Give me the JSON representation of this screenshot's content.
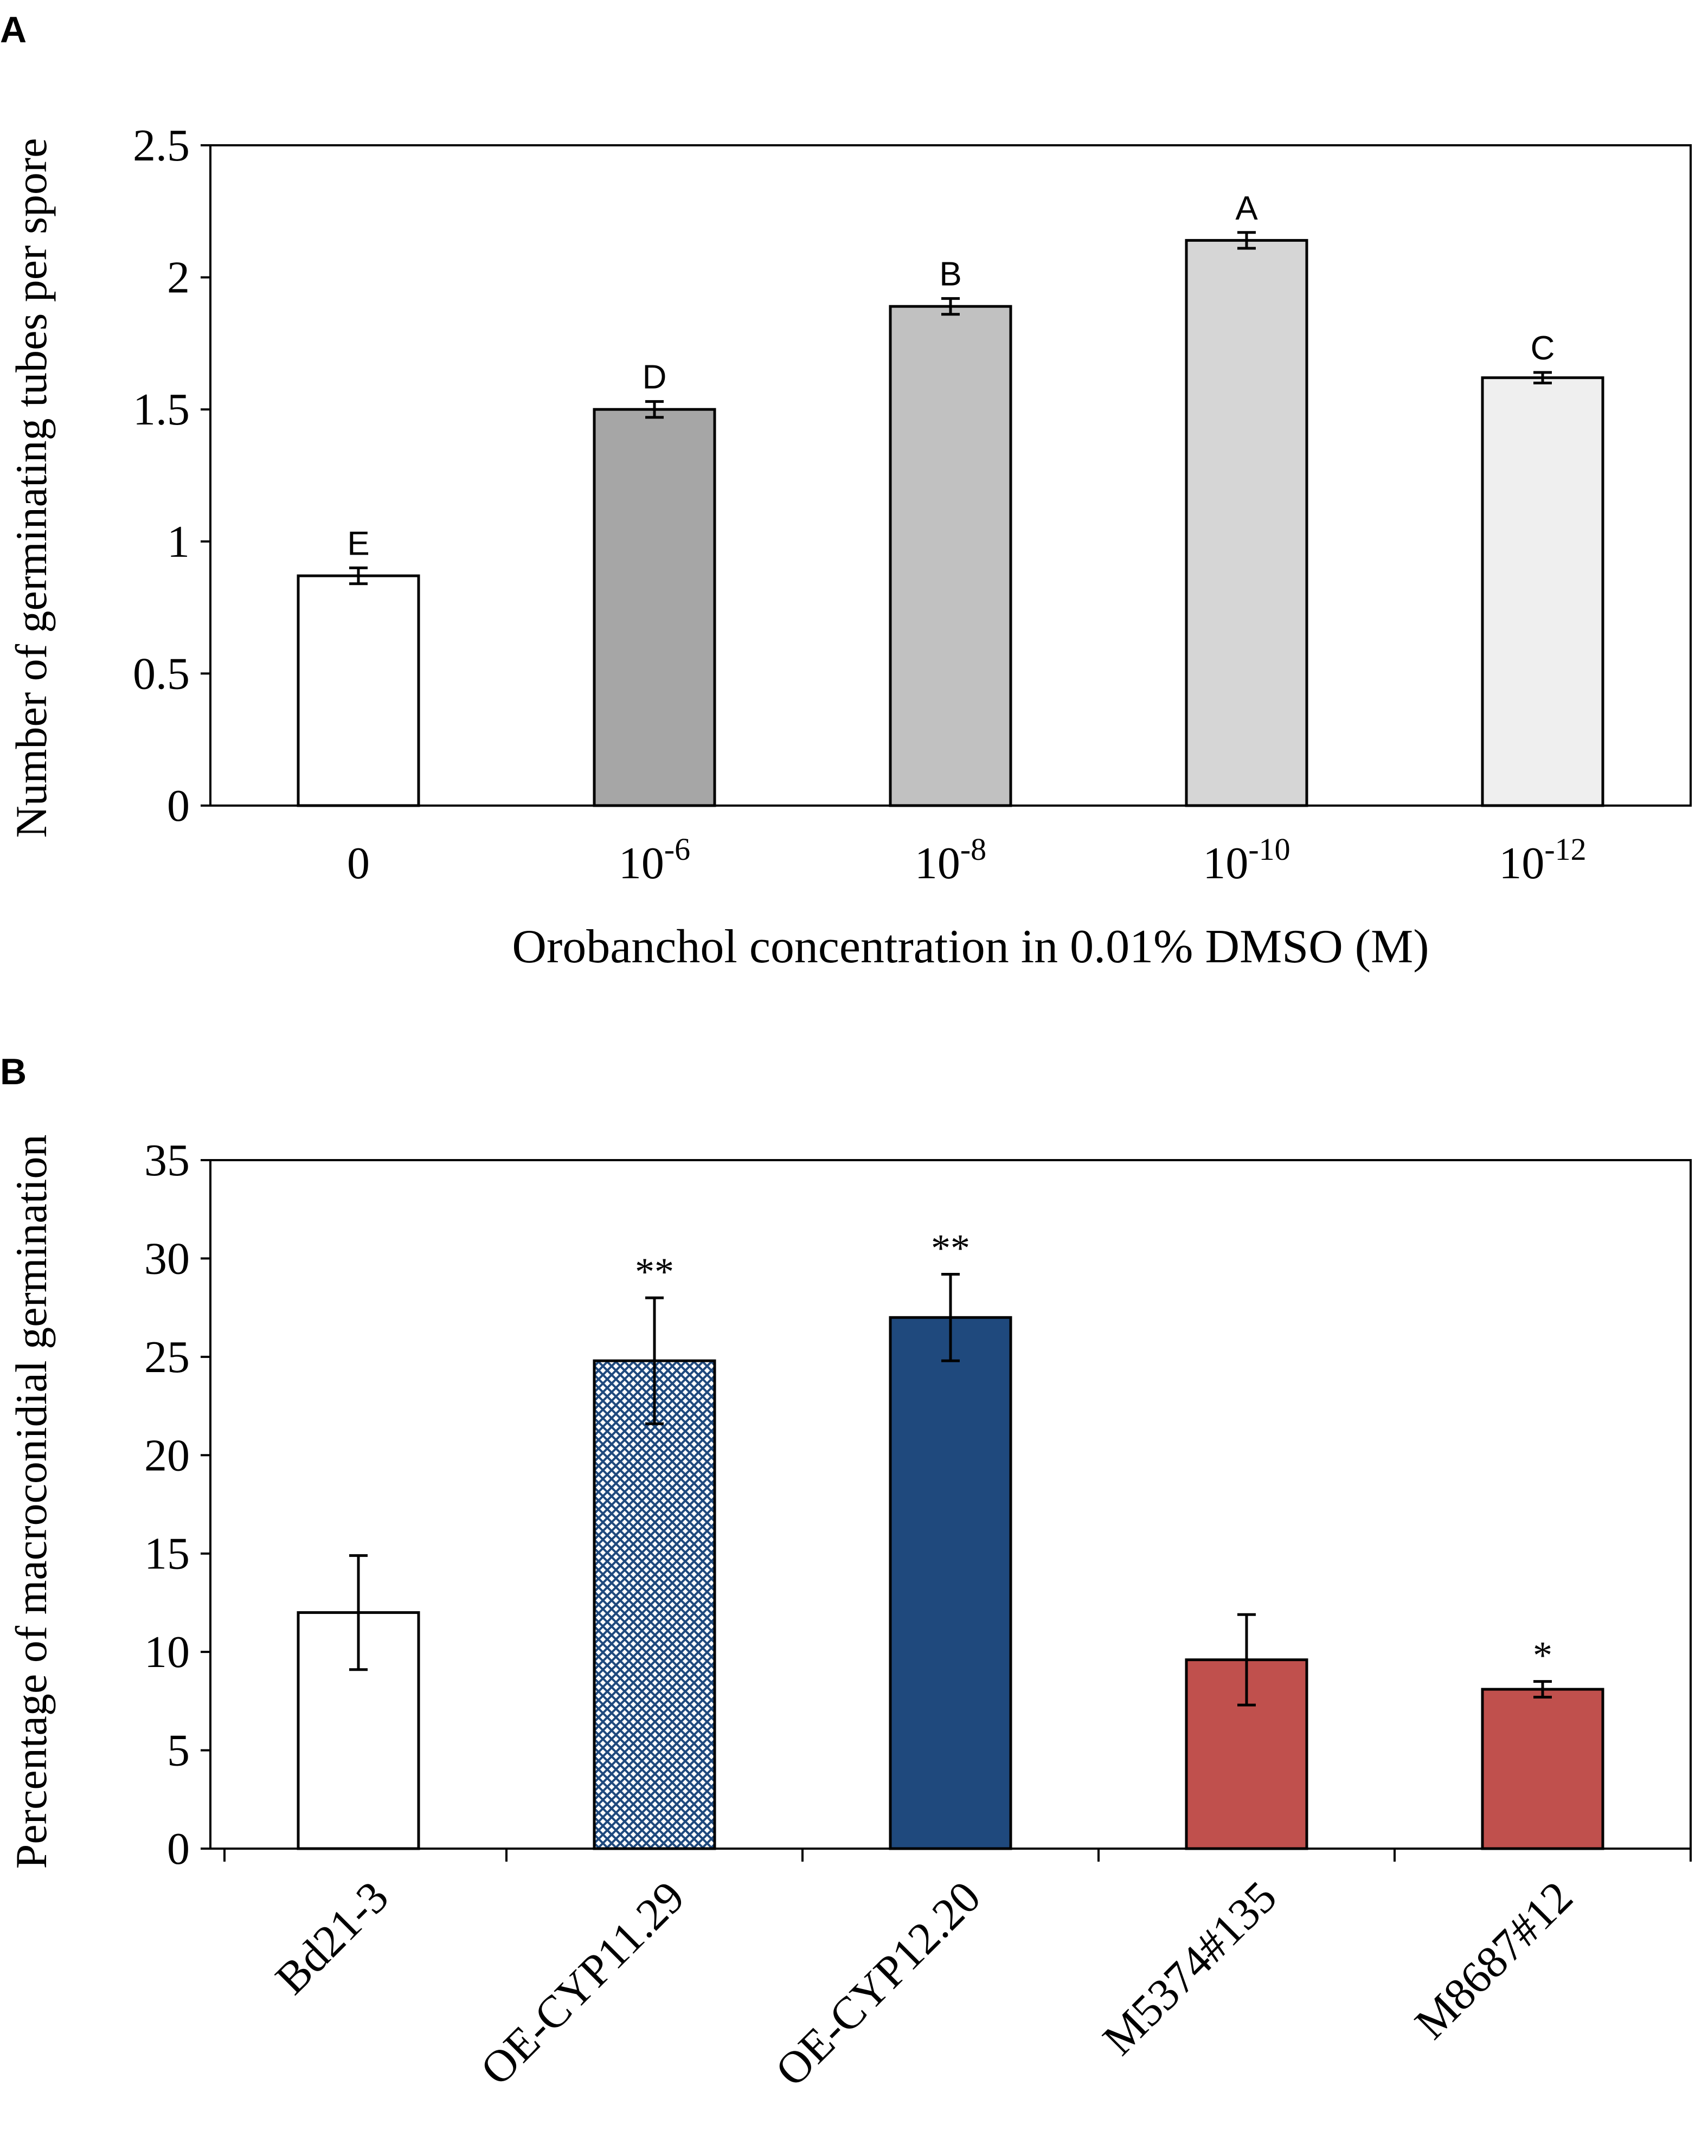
{
  "chart_data": [
    {
      "panel": "A",
      "type": "bar",
      "title": "",
      "xlabel": "Orobanchol concentration in 0.01% DMSO (M)",
      "ylabel": "Number of germinating tubes per spore",
      "ylim": [
        0,
        2.5
      ],
      "yticks": [
        "0",
        "0.5",
        "1",
        "1.5",
        "2",
        "2.5"
      ],
      "ytick_values": [
        0,
        0.5,
        1,
        1.5,
        2,
        2.5
      ],
      "categories": [
        {
          "base": "0",
          "exp": ""
        },
        {
          "base": "10",
          "exp": "-6"
        },
        {
          "base": "10",
          "exp": "-8"
        },
        {
          "base": "10",
          "exp": "-10"
        },
        {
          "base": "10",
          "exp": "-12"
        }
      ],
      "values": [
        0.87,
        1.5,
        1.89,
        2.14,
        1.62
      ],
      "errors": [
        0.03,
        0.03,
        0.03,
        0.03,
        0.02
      ],
      "annotations": [
        "E",
        "D",
        "B",
        "A",
        "C"
      ],
      "colors": [
        "#ffffff",
        "#a6a6a6",
        "#c1c1c1",
        "#d6d6d6",
        "#efefef"
      ]
    },
    {
      "panel": "B",
      "type": "bar",
      "title": "",
      "xlabel": "",
      "ylabel": "Percentage of macroconidial germination",
      "ylim": [
        0,
        35
      ],
      "yticks": [
        "0",
        "5",
        "10",
        "15",
        "20",
        "25",
        "30",
        "35"
      ],
      "ytick_values": [
        0,
        5,
        10,
        15,
        20,
        25,
        30,
        35
      ],
      "categories": [
        "Bd21-3",
        "OE-CYP11.29",
        "OE-CYP12.20",
        "M5374#135",
        "M8687#12"
      ],
      "values": [
        12.0,
        24.8,
        27.0,
        9.6,
        8.1
      ],
      "errors": [
        2.9,
        3.2,
        2.2,
        2.3,
        0.4
      ],
      "annotations": [
        "",
        "**",
        "**",
        "",
        "*"
      ],
      "colors": [
        "#ffffff",
        "hatch-blue",
        "#1f497d",
        "#c0504d",
        "#c0504d"
      ]
    }
  ],
  "panel_labels": {
    "a": "A",
    "b": "B"
  }
}
